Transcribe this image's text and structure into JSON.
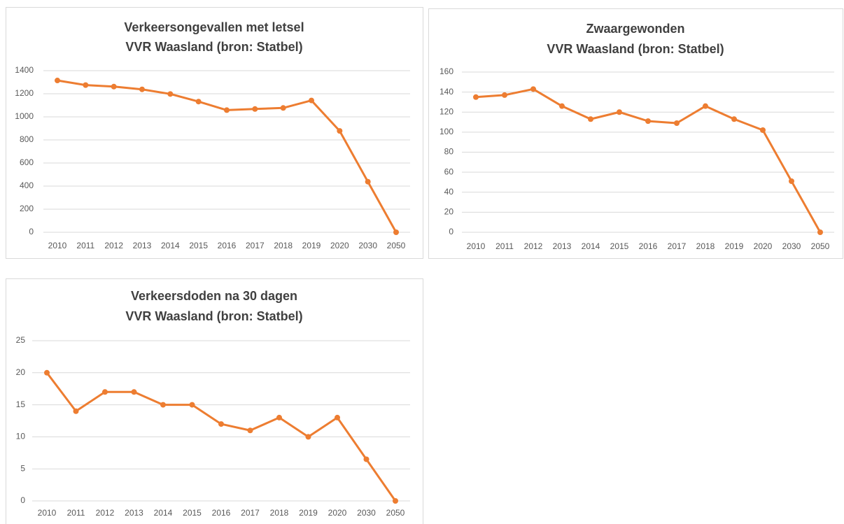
{
  "chart_data": [
    {
      "type": "line",
      "title": [
        "Verkeersongevallen met letsel",
        "VVR Waasland (bron: Statbel)"
      ],
      "categories": [
        "2010",
        "2011",
        "2012",
        "2013",
        "2014",
        "2015",
        "2016",
        "2017",
        "2018",
        "2019",
        "2020",
        "2030",
        "2050"
      ],
      "values": [
        1315,
        1275,
        1262,
        1238,
        1198,
        1132,
        1058,
        1068,
        1077,
        1142,
        878,
        438,
        0
      ],
      "color": "#ed7d31",
      "ylim": [
        0,
        1400
      ],
      "yticks": [
        0,
        200,
        400,
        600,
        800,
        1000,
        1200,
        1400
      ],
      "grid": true
    },
    {
      "type": "line",
      "title": [
        "Zwaargewonden",
        "VVR Waasland (bron: Statbel)"
      ],
      "categories": [
        "2010",
        "2011",
        "2012",
        "2013",
        "2014",
        "2015",
        "2016",
        "2017",
        "2018",
        "2019",
        "2020",
        "2030",
        "2050"
      ],
      "values": [
        135,
        137,
        143,
        126,
        113,
        120,
        111,
        109,
        126,
        113,
        102,
        51,
        0
      ],
      "color": "#ed7d31",
      "ylim": [
        0,
        160
      ],
      "yticks": [
        0,
        20,
        40,
        60,
        80,
        100,
        120,
        140,
        160
      ],
      "grid": true
    },
    {
      "type": "line",
      "title": [
        "Verkeersdoden na 30 dagen",
        "VVR Waasland (bron: Statbel)"
      ],
      "categories": [
        "2010",
        "2011",
        "2012",
        "2013",
        "2014",
        "2015",
        "2016",
        "2017",
        "2018",
        "2019",
        "2020",
        "2030",
        "2050"
      ],
      "values": [
        20,
        14,
        17,
        17,
        15,
        15,
        12,
        11,
        13,
        10,
        13,
        6.5,
        0
      ],
      "color": "#ed7d31",
      "ylim": [
        0,
        25
      ],
      "yticks": [
        0,
        5,
        10,
        15,
        20,
        25
      ],
      "grid": true
    }
  ]
}
